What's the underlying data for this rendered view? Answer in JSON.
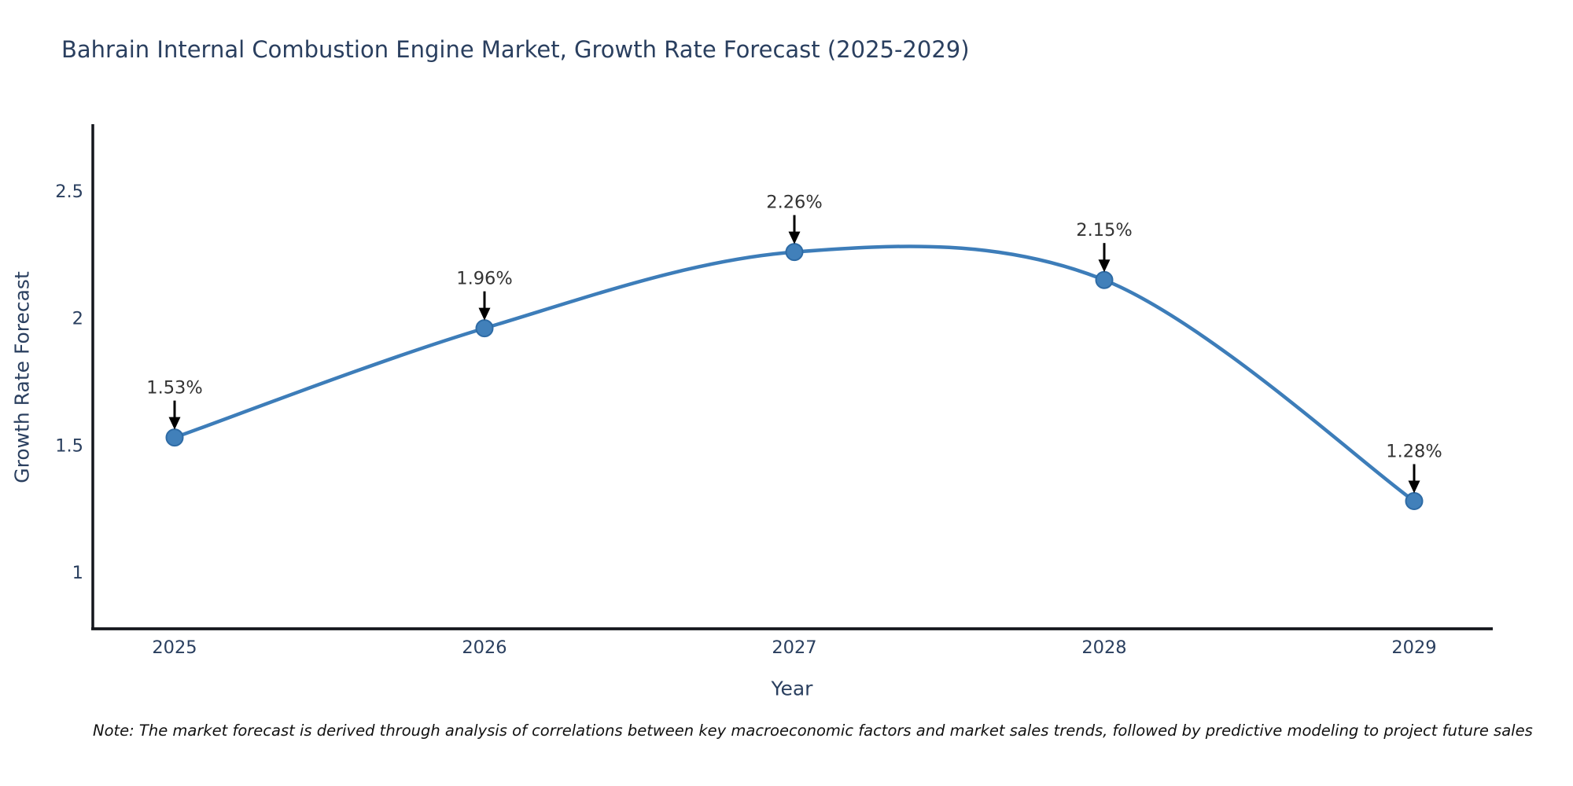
{
  "title": "Bahrain Internal Combustion Engine Market, Growth Rate Forecast (2025-2029)",
  "note": "Note: The market forecast is derived through analysis of correlations between key macroeconomic factors and market sales trends, followed by predictive modeling to project future sales",
  "chart_data": {
    "type": "line",
    "title": "Bahrain Internal Combustion Engine Market, Growth Rate Forecast (2025-2029)",
    "xlabel": "Year",
    "ylabel": "Growth Rate Forecast",
    "x": [
      2025,
      2026,
      2027,
      2028,
      2029
    ],
    "values": [
      1.53,
      1.96,
      2.26,
      2.15,
      1.28
    ],
    "point_labels": [
      "1.53%",
      "1.96%",
      "2.26%",
      "2.15%",
      "1.28%"
    ],
    "x_tick_labels": [
      "2025",
      "2026",
      "2027",
      "2028",
      "2029"
    ],
    "y_ticks": [
      1,
      1.5,
      2,
      2.5
    ],
    "y_tick_labels": [
      "1",
      "1.5",
      "2",
      "2.5"
    ],
    "xlim": [
      2024.73,
      2029.25
    ],
    "ylim": [
      0.78,
      2.76
    ],
    "grid": false,
    "legend": "none",
    "line_shape": "spline",
    "colors": {
      "line": "#3d7db9",
      "marker_fill": "#4180ba",
      "marker_edge": "#2e6ba5",
      "axis_line": "#14171d",
      "tick_label": "#2a3f5f",
      "annotation_text": "#333333",
      "arrow": "#000000",
      "background": "#ffffff"
    }
  }
}
